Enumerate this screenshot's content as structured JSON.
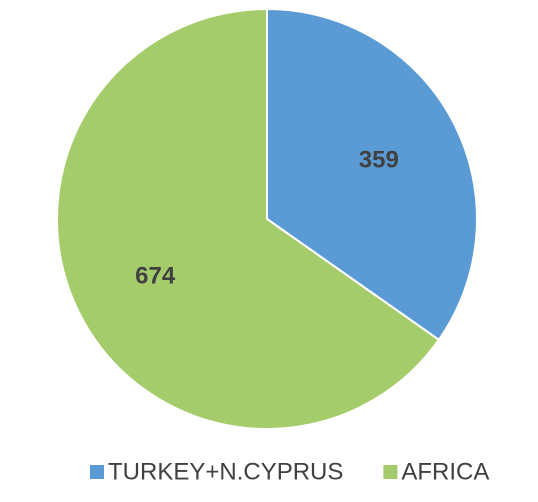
{
  "chart_data": {
    "type": "pie",
    "categories": [
      "TURKEY+N.CYPRUS",
      "AFRICA"
    ],
    "values": [
      359,
      674
    ],
    "colors": [
      "#5b9bd5",
      "#a5cc6a"
    ],
    "legend": "bottom"
  }
}
